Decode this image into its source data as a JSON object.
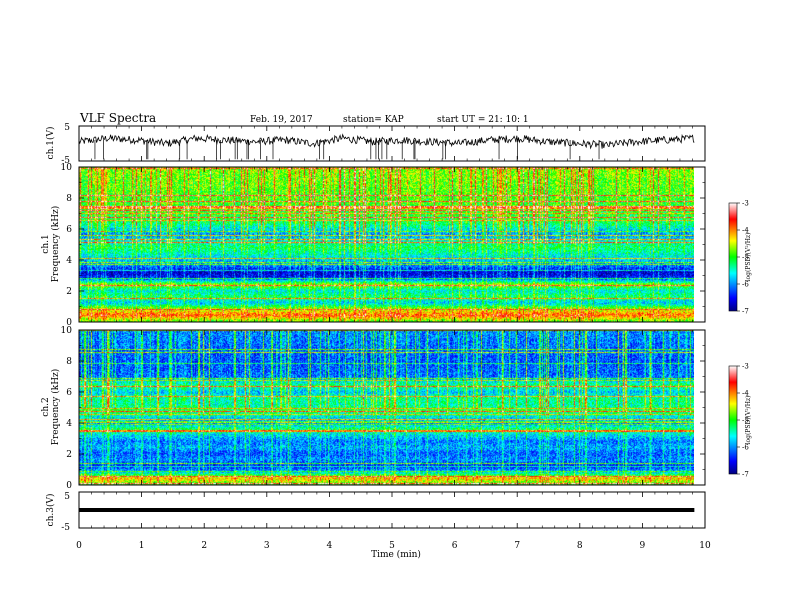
{
  "header": {
    "title": "VLF Spectra",
    "date": "Feb. 19, 2017",
    "station": "station= KAP",
    "start": "start  UT =  21: 10: 1"
  },
  "chart_data": [
    {
      "type": "line",
      "name": "ch1-waveform",
      "ylabel": "ch.1(V)",
      "ylim": [
        -5,
        5
      ],
      "yticks": [
        "5",
        "-5"
      ],
      "xlim": [
        0,
        10
      ],
      "x_end_min": 9.83,
      "signal_level_V": [
        0.5,
        1.5,
        1.0,
        0.0,
        1.5,
        1.0,
        0.5,
        1.0,
        0.0,
        1.5,
        0.5,
        1.0,
        0.5,
        0.0,
        1.0,
        1.5,
        0.5,
        0.0,
        -0.5,
        0.5,
        1.0,
        1.5
      ]
    },
    {
      "type": "heatmap",
      "name": "ch1-spectrogram",
      "ylabel": "ch.1 Frequency (kHz)",
      "ylim": [
        0,
        10
      ],
      "yticks": [
        "0",
        "2",
        "4",
        "6",
        "8",
        "10"
      ],
      "xlim": [
        0,
        10
      ],
      "x_end_min": 9.83,
      "freq_profile_log_psd": [
        [
          0.0,
          -4.9
        ],
        [
          0.4,
          -3.9
        ],
        [
          0.8,
          -4.6
        ],
        [
          1.2,
          -5.8
        ],
        [
          1.6,
          -5.2
        ],
        [
          2.0,
          -5.6
        ],
        [
          2.4,
          -4.7
        ],
        [
          2.8,
          -6.4
        ],
        [
          3.2,
          -6.7
        ],
        [
          3.6,
          -6.1
        ],
        [
          4.0,
          -5.8
        ],
        [
          4.4,
          -5.5
        ],
        [
          4.8,
          -5.2
        ],
        [
          5.2,
          -5.5
        ],
        [
          5.6,
          -6.0
        ],
        [
          6.0,
          -5.6
        ],
        [
          6.4,
          -5.2
        ],
        [
          7.0,
          -5.0
        ],
        [
          8.0,
          -4.9
        ],
        [
          9.0,
          -4.8
        ],
        [
          10.0,
          -4.7
        ]
      ]
    },
    {
      "type": "heatmap",
      "name": "ch2-spectrogram",
      "ylabel": "ch.2 Frequency (kHz)",
      "ylim": [
        0,
        10
      ],
      "yticks": [
        "0",
        "2",
        "4",
        "6",
        "8",
        "10"
      ],
      "xlim": [
        0,
        10
      ],
      "x_end_min": 9.83,
      "freq_profile_log_psd": [
        [
          0.0,
          -5.0
        ],
        [
          0.4,
          -4.2
        ],
        [
          0.8,
          -5.8
        ],
        [
          1.2,
          -6.4
        ],
        [
          1.6,
          -6.0
        ],
        [
          2.0,
          -6.2
        ],
        [
          2.4,
          -5.9
        ],
        [
          2.8,
          -6.1
        ],
        [
          3.2,
          -5.7
        ],
        [
          3.6,
          -5.2
        ],
        [
          4.0,
          -6.1
        ],
        [
          4.4,
          -5.6
        ],
        [
          4.8,
          -5.1
        ],
        [
          5.2,
          -5.4
        ],
        [
          5.6,
          -5.3
        ],
        [
          6.0,
          -5.8
        ],
        [
          6.4,
          -5.2
        ],
        [
          7.0,
          -6.1
        ],
        [
          8.0,
          -6.2
        ],
        [
          9.0,
          -6.1
        ],
        [
          10.0,
          -6.0
        ]
      ]
    },
    {
      "type": "line",
      "name": "ch3-waveform",
      "ylabel": "ch.3(V)",
      "ylim": [
        -5,
        5
      ],
      "yticks": [
        "5",
        "-5"
      ],
      "xlim": [
        0,
        10
      ],
      "x_end_min": 9.83,
      "constant_value_V": 0
    }
  ],
  "x_axis": {
    "label": "Time  (min)",
    "ticks": [
      "0",
      "1",
      "2",
      "3",
      "4",
      "5",
      "6",
      "7",
      "8",
      "9",
      "10"
    ]
  },
  "colorbar": {
    "label": "log(PSD)(V²/Hz)",
    "ticks": [
      "-3",
      "-4",
      "-5",
      "-6",
      "-7"
    ],
    "range": [
      -7,
      -3
    ],
    "colormap": [
      "#000080",
      "#0000ff",
      "#00ffff",
      "#00ff00",
      "#ffff00",
      "#ff0000",
      "#ffffff"
    ]
  }
}
